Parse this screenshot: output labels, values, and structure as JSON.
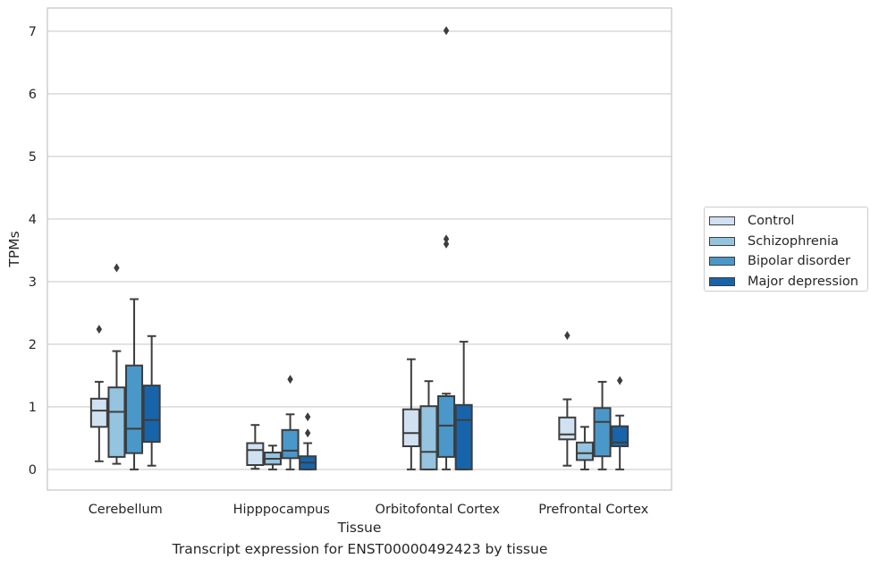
{
  "chart_data": {
    "type": "box",
    "xlabel": "Tissue",
    "ylabel": "TPMs",
    "caption": "Transcript expression for ENST00000492423 by tissue",
    "categories": [
      "Cerebellum",
      "Hipppocampus",
      "Orbitofontal Cortex",
      "Prefrontal Cortex"
    ],
    "ylim": [
      -0.33,
      7.37
    ],
    "yticks": [
      0,
      1,
      2,
      3,
      4,
      5,
      6,
      7
    ],
    "grid": "horizontal",
    "legend_position": "right",
    "series": [
      {
        "name": "Control",
        "color": "#d0e1f2",
        "boxes": [
          {
            "whisker_low": 0.13,
            "q1": 0.68,
            "median": 0.94,
            "q3": 1.13,
            "whisker_high": 1.4,
            "outliers": [
              2.24
            ]
          },
          {
            "whisker_low": 0.01,
            "q1": 0.07,
            "median": 0.31,
            "q3": 0.42,
            "whisker_high": 0.71,
            "outliers": []
          },
          {
            "whisker_low": 0.0,
            "q1": 0.37,
            "median": 0.58,
            "q3": 0.96,
            "whisker_high": 1.76,
            "outliers": []
          },
          {
            "whisker_low": 0.06,
            "q1": 0.48,
            "median": 0.56,
            "q3": 0.83,
            "whisker_high": 1.12,
            "outliers": [
              2.14
            ]
          }
        ]
      },
      {
        "name": "Schizophrenia",
        "color": "#94c4df",
        "boxes": [
          {
            "whisker_low": 0.09,
            "q1": 0.2,
            "median": 0.92,
            "q3": 1.31,
            "whisker_high": 1.89,
            "outliers": [
              3.22
            ]
          },
          {
            "whisker_low": 0.0,
            "q1": 0.08,
            "median": 0.17,
            "q3": 0.27,
            "whisker_high": 0.38,
            "outliers": []
          },
          {
            "whisker_low": 0.0,
            "q1": 0.0,
            "median": 0.28,
            "q3": 1.01,
            "whisker_high": 1.41,
            "outliers": []
          },
          {
            "whisker_low": 0.0,
            "q1": 0.15,
            "median": 0.26,
            "q3": 0.43,
            "whisker_high": 0.68,
            "outliers": []
          }
        ]
      },
      {
        "name": "Bipolar disorder",
        "color": "#4a98c9",
        "boxes": [
          {
            "whisker_low": 0.0,
            "q1": 0.26,
            "median": 0.65,
            "q3": 1.66,
            "whisker_high": 2.72,
            "outliers": []
          },
          {
            "whisker_low": 0.0,
            "q1": 0.18,
            "median": 0.3,
            "q3": 0.63,
            "whisker_high": 0.88,
            "outliers": [
              1.44
            ]
          },
          {
            "whisker_low": 0.0,
            "q1": 0.2,
            "median": 0.7,
            "q3": 1.17,
            "whisker_high": 1.21,
            "outliers": [
              3.6,
              3.68,
              7.01
            ]
          },
          {
            "whisker_low": 0.0,
            "q1": 0.21,
            "median": 0.76,
            "q3": 0.98,
            "whisker_high": 1.4,
            "outliers": []
          }
        ]
      },
      {
        "name": "Major depression",
        "color": "#1764ab",
        "boxes": [
          {
            "whisker_low": 0.06,
            "q1": 0.44,
            "median": 0.79,
            "q3": 1.34,
            "whisker_high": 2.13,
            "outliers": []
          },
          {
            "whisker_low": 0.0,
            "q1": 0.0,
            "median": 0.11,
            "q3": 0.21,
            "whisker_high": 0.42,
            "outliers": [
              0.58,
              0.84
            ]
          },
          {
            "whisker_low": 0.0,
            "q1": 0.0,
            "median": 0.79,
            "q3": 1.03,
            "whisker_high": 2.04,
            "outliers": []
          },
          {
            "whisker_low": 0.0,
            "q1": 0.37,
            "median": 0.43,
            "q3": 0.69,
            "whisker_high": 0.86,
            "outliers": [
              1.42
            ]
          }
        ]
      }
    ]
  }
}
